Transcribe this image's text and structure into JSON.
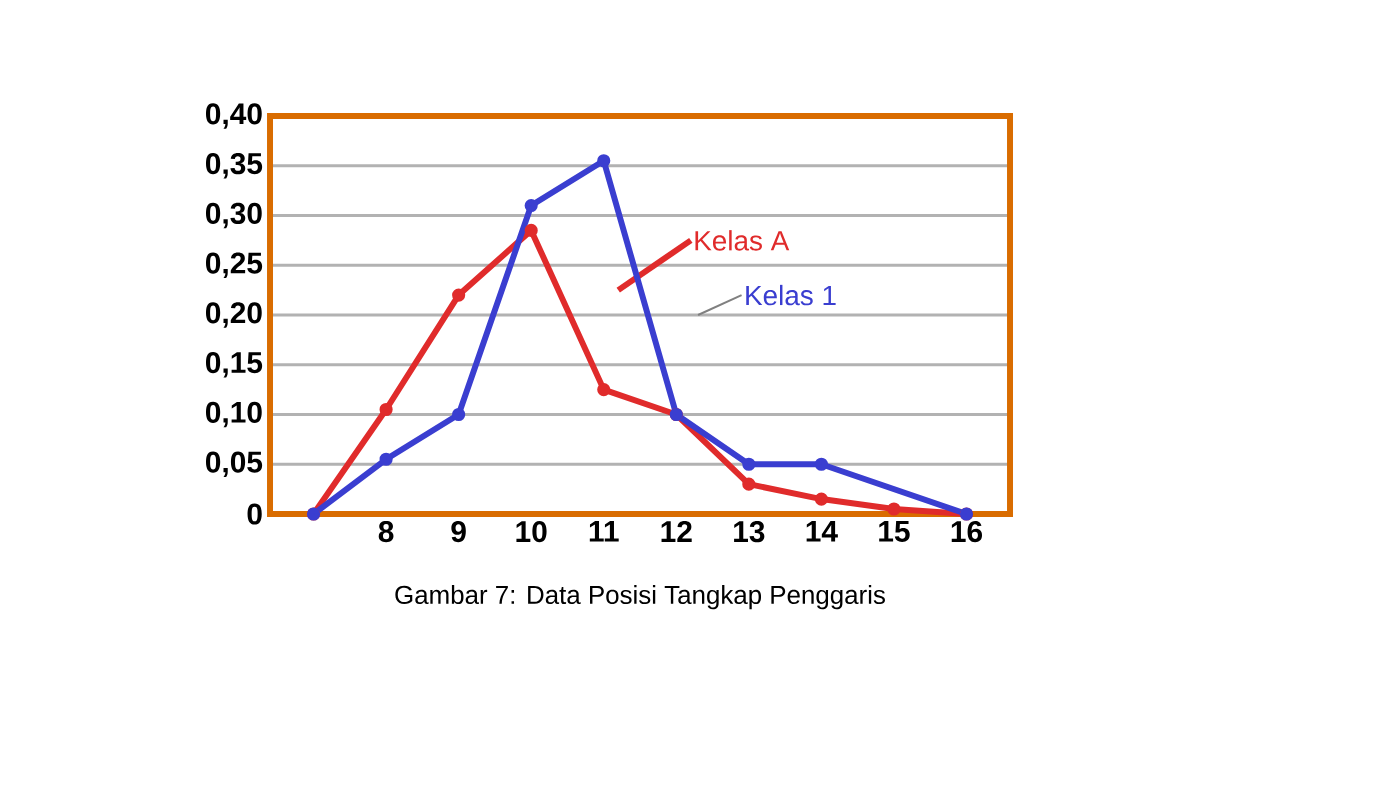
{
  "chart_data": {
    "type": "line",
    "series": [
      {
        "name": "Kelas A",
        "color": "#e02b2b",
        "x": [
          7,
          8,
          9,
          10,
          11,
          12,
          13,
          14,
          15,
          16
        ],
        "values": [
          0,
          0.105,
          0.22,
          0.285,
          0.125,
          0.1,
          0.03,
          0.015,
          0.005,
          0
        ]
      },
      {
        "name": "Kelas 1",
        "color": "#3a3ed0",
        "x": [
          7,
          8,
          9,
          10,
          11,
          12,
          13,
          14,
          16
        ],
        "values": [
          0,
          0.055,
          0.1,
          0.31,
          0.355,
          0.1,
          0.05,
          0.05,
          0
        ]
      }
    ],
    "xlim": [
      6.4,
      16.6
    ],
    "xticks": [
      8,
      9,
      10,
      11,
      12,
      13,
      14,
      15,
      16
    ],
    "ylim": [
      0,
      0.4
    ],
    "yticks": [
      0,
      {
        "value": 0.05,
        "label": "0,05"
      },
      {
        "value": 0.1,
        "label": "0,10"
      },
      {
        "value": 0.15,
        "label": "0,15"
      },
      {
        "value": 0.2,
        "label": "0,20"
      },
      {
        "value": 0.25,
        "label": "0,25"
      },
      {
        "value": 0.3,
        "label": "0,30"
      },
      {
        "value": 0.35,
        "label": "0,35"
      },
      {
        "value": 0.4,
        "label": "0,40"
      }
    ],
    "grid": "y",
    "marker": "circle",
    "line_style": "solid",
    "annotations": [
      "Gambar 7: Data Posisi Tangkap Penggaris"
    ]
  }
}
